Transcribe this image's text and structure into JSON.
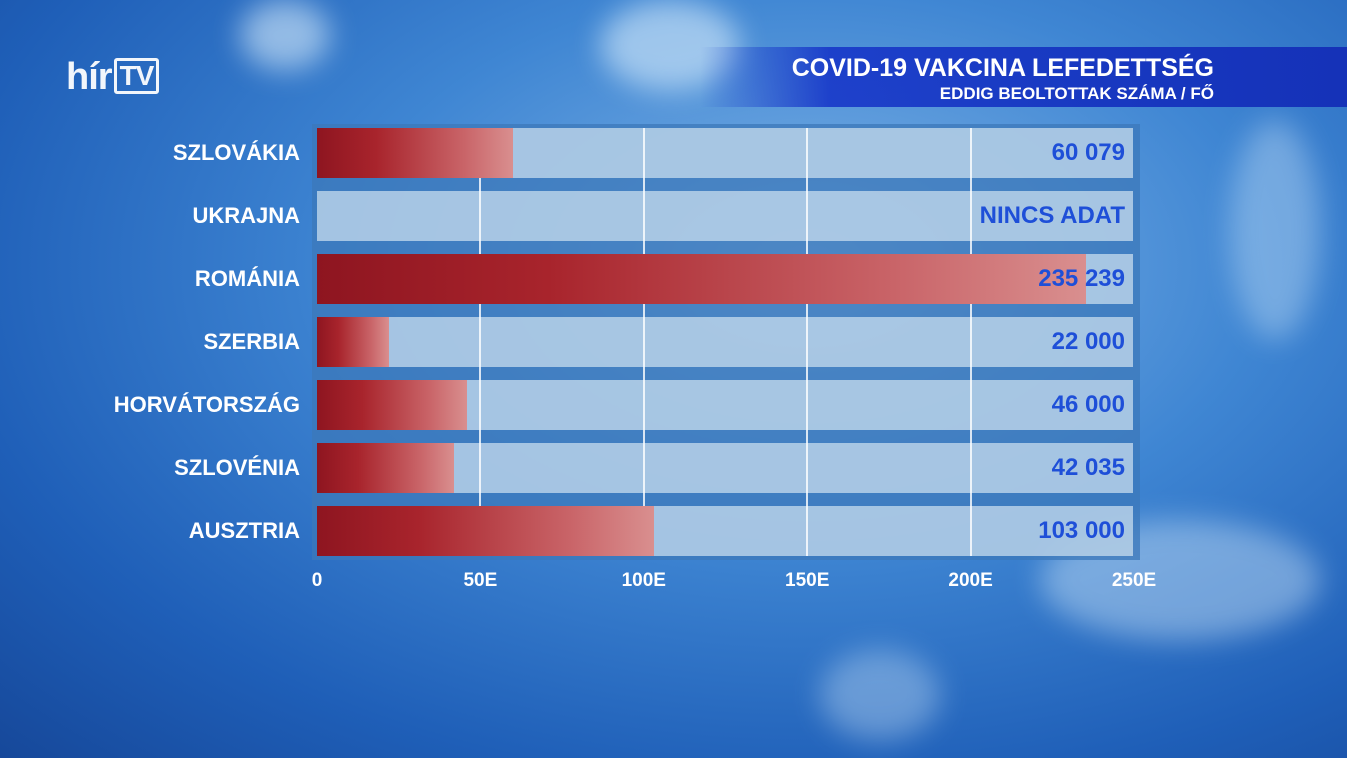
{
  "logo": {
    "text": "hír",
    "tv": "TV"
  },
  "header": {
    "title": "COVID-19 VAKCINA LEFEDETTSÉG",
    "subtitle": "EDDIG BEOLTOTTAK SZÁMA / FŐ"
  },
  "chart_data": {
    "type": "bar",
    "orientation": "horizontal",
    "title": "COVID-19 VAKCINA LEFEDETTSÉG",
    "subtitle": "EDDIG BEOLTOTTAK SZÁMA / FŐ",
    "categories": [
      "SZLOVÁKIA",
      "UKRAJNA",
      "ROMÁNIA",
      "SZERBIA",
      "HORVÁTORSZÁG",
      "SZLOVÉNIA",
      "AUSZTRIA"
    ],
    "values": [
      60079,
      null,
      235239,
      22000,
      46000,
      42035,
      103000
    ],
    "value_labels": [
      "60 079",
      "NINCS ADAT",
      "235 239",
      "22 000",
      "46 000",
      "42 035",
      "103 000"
    ],
    "xlim": [
      0,
      250000
    ],
    "xticks": [
      0,
      50000,
      100000,
      150000,
      200000,
      250000
    ],
    "xtick_labels": [
      "0",
      "50E",
      "100E",
      "150E",
      "200E",
      "250E"
    ],
    "grid": true,
    "colors": {
      "bar": "#a8242c",
      "value_text": "#1e4fd8",
      "band": "#cde1f0"
    }
  }
}
